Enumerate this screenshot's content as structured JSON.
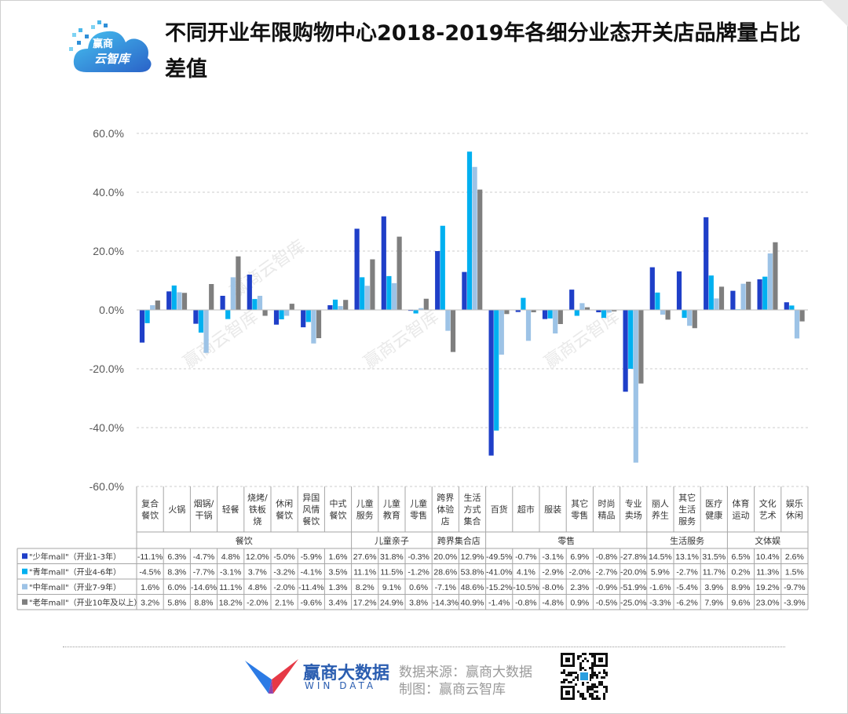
{
  "title": "不同开业年限购物中心2018-2019年各细分业态开关店品牌量占比差值",
  "logo": {
    "line1": "赢商",
    "line2": "云智库"
  },
  "footer": {
    "brand_name": "赢商大数据",
    "brand_en": "WIN DATA",
    "source": "数据来源：赢商大数据",
    "made_by": "制图：赢商云智库"
  },
  "watermark": "赢商云智库",
  "colors": {
    "series": [
      "#1f3fc8",
      "#00b0f0",
      "#9dc3e6",
      "#7f7f7f"
    ],
    "grid": "#cccccc",
    "axis_text": "#595959"
  },
  "chart_data": {
    "type": "bar",
    "ylim": [
      -60,
      60
    ],
    "yticks": [
      "60.0%",
      "40.0%",
      "20.0%",
      "0.0%",
      "-20.0%",
      "-40.0%",
      "-60.0%"
    ],
    "categories": [
      [
        "复合",
        "餐饮"
      ],
      [
        "火锅"
      ],
      [
        "烟锅/",
        "干锅"
      ],
      [
        "轻餐"
      ],
      [
        "烧烤/",
        "铁板",
        "烧"
      ],
      [
        "休闲",
        "餐饮"
      ],
      [
        "异国",
        "风情",
        "餐饮"
      ],
      [
        "中式",
        "餐饮"
      ],
      [
        "儿童",
        "服务"
      ],
      [
        "儿童",
        "教育"
      ],
      [
        "儿童",
        "零售"
      ],
      [
        "跨界",
        "体验",
        "店"
      ],
      [
        "生活",
        "方式",
        "集合"
      ],
      [
        "百货"
      ],
      [
        "超市"
      ],
      [
        "服装"
      ],
      [
        "其它",
        "零售"
      ],
      [
        "时尚",
        "精品"
      ],
      [
        "专业",
        "卖场"
      ],
      [
        "丽人",
        "养生"
      ],
      [
        "其它",
        "生活",
        "服务"
      ],
      [
        "医疗",
        "健康"
      ],
      [
        "体育",
        "运动"
      ],
      [
        "文化",
        "艺术"
      ],
      [
        "娱乐",
        "休闲"
      ]
    ],
    "groups": [
      {
        "name": "餐饮",
        "count": 8
      },
      {
        "name": "儿童亲子",
        "count": 3
      },
      {
        "name": "跨界集合店",
        "count": 2
      },
      {
        "name": "零售",
        "count": 6
      },
      {
        "name": "生活服务",
        "count": 3
      },
      {
        "name": "文体娱",
        "count": 3
      }
    ],
    "series": [
      {
        "name": "\"少年mall\"（开业1-3年）",
        "values": [
          -11.1,
          6.3,
          -4.7,
          4.8,
          12.0,
          -5.0,
          -5.9,
          1.6,
          27.6,
          31.8,
          -0.3,
          20.0,
          12.9,
          -49.5,
          -0.7,
          -3.1,
          6.9,
          -0.8,
          -27.8,
          14.5,
          13.1,
          31.5,
          6.5,
          10.4,
          2.6
        ]
      },
      {
        "name": "\"青年mall\"（开业4-6年）",
        "values": [
          -4.5,
          8.3,
          -7.7,
          -3.1,
          3.7,
          -3.2,
          -4.1,
          3.5,
          11.1,
          11.5,
          -1.2,
          28.6,
          53.8,
          -41.0,
          4.1,
          -2.9,
          -2.0,
          -2.7,
          -20.0,
          5.9,
          -2.7,
          11.7,
          0.2,
          11.3,
          1.5
        ]
      },
      {
        "name": "\"中年mall\"（开业7-9年）",
        "values": [
          1.6,
          6.0,
          -14.6,
          11.1,
          4.8,
          -2.0,
          -11.4,
          1.3,
          8.2,
          9.1,
          0.6,
          -7.1,
          48.6,
          -15.2,
          -10.5,
          -8.0,
          2.3,
          -0.9,
          -51.9,
          -1.6,
          -5.4,
          3.9,
          8.9,
          19.2,
          -9.7
        ]
      },
      {
        "name": "\"老年mall\"（开业10年及以上）",
        "values": [
          3.2,
          5.8,
          8.8,
          18.2,
          -2.0,
          2.1,
          -9.6,
          3.4,
          17.2,
          24.9,
          3.8,
          -14.3,
          40.9,
          -1.4,
          -0.8,
          -4.8,
          0.9,
          -0.5,
          -25.0,
          -3.3,
          -6.2,
          7.9,
          9.6,
          23.0,
          -3.9
        ]
      }
    ]
  }
}
